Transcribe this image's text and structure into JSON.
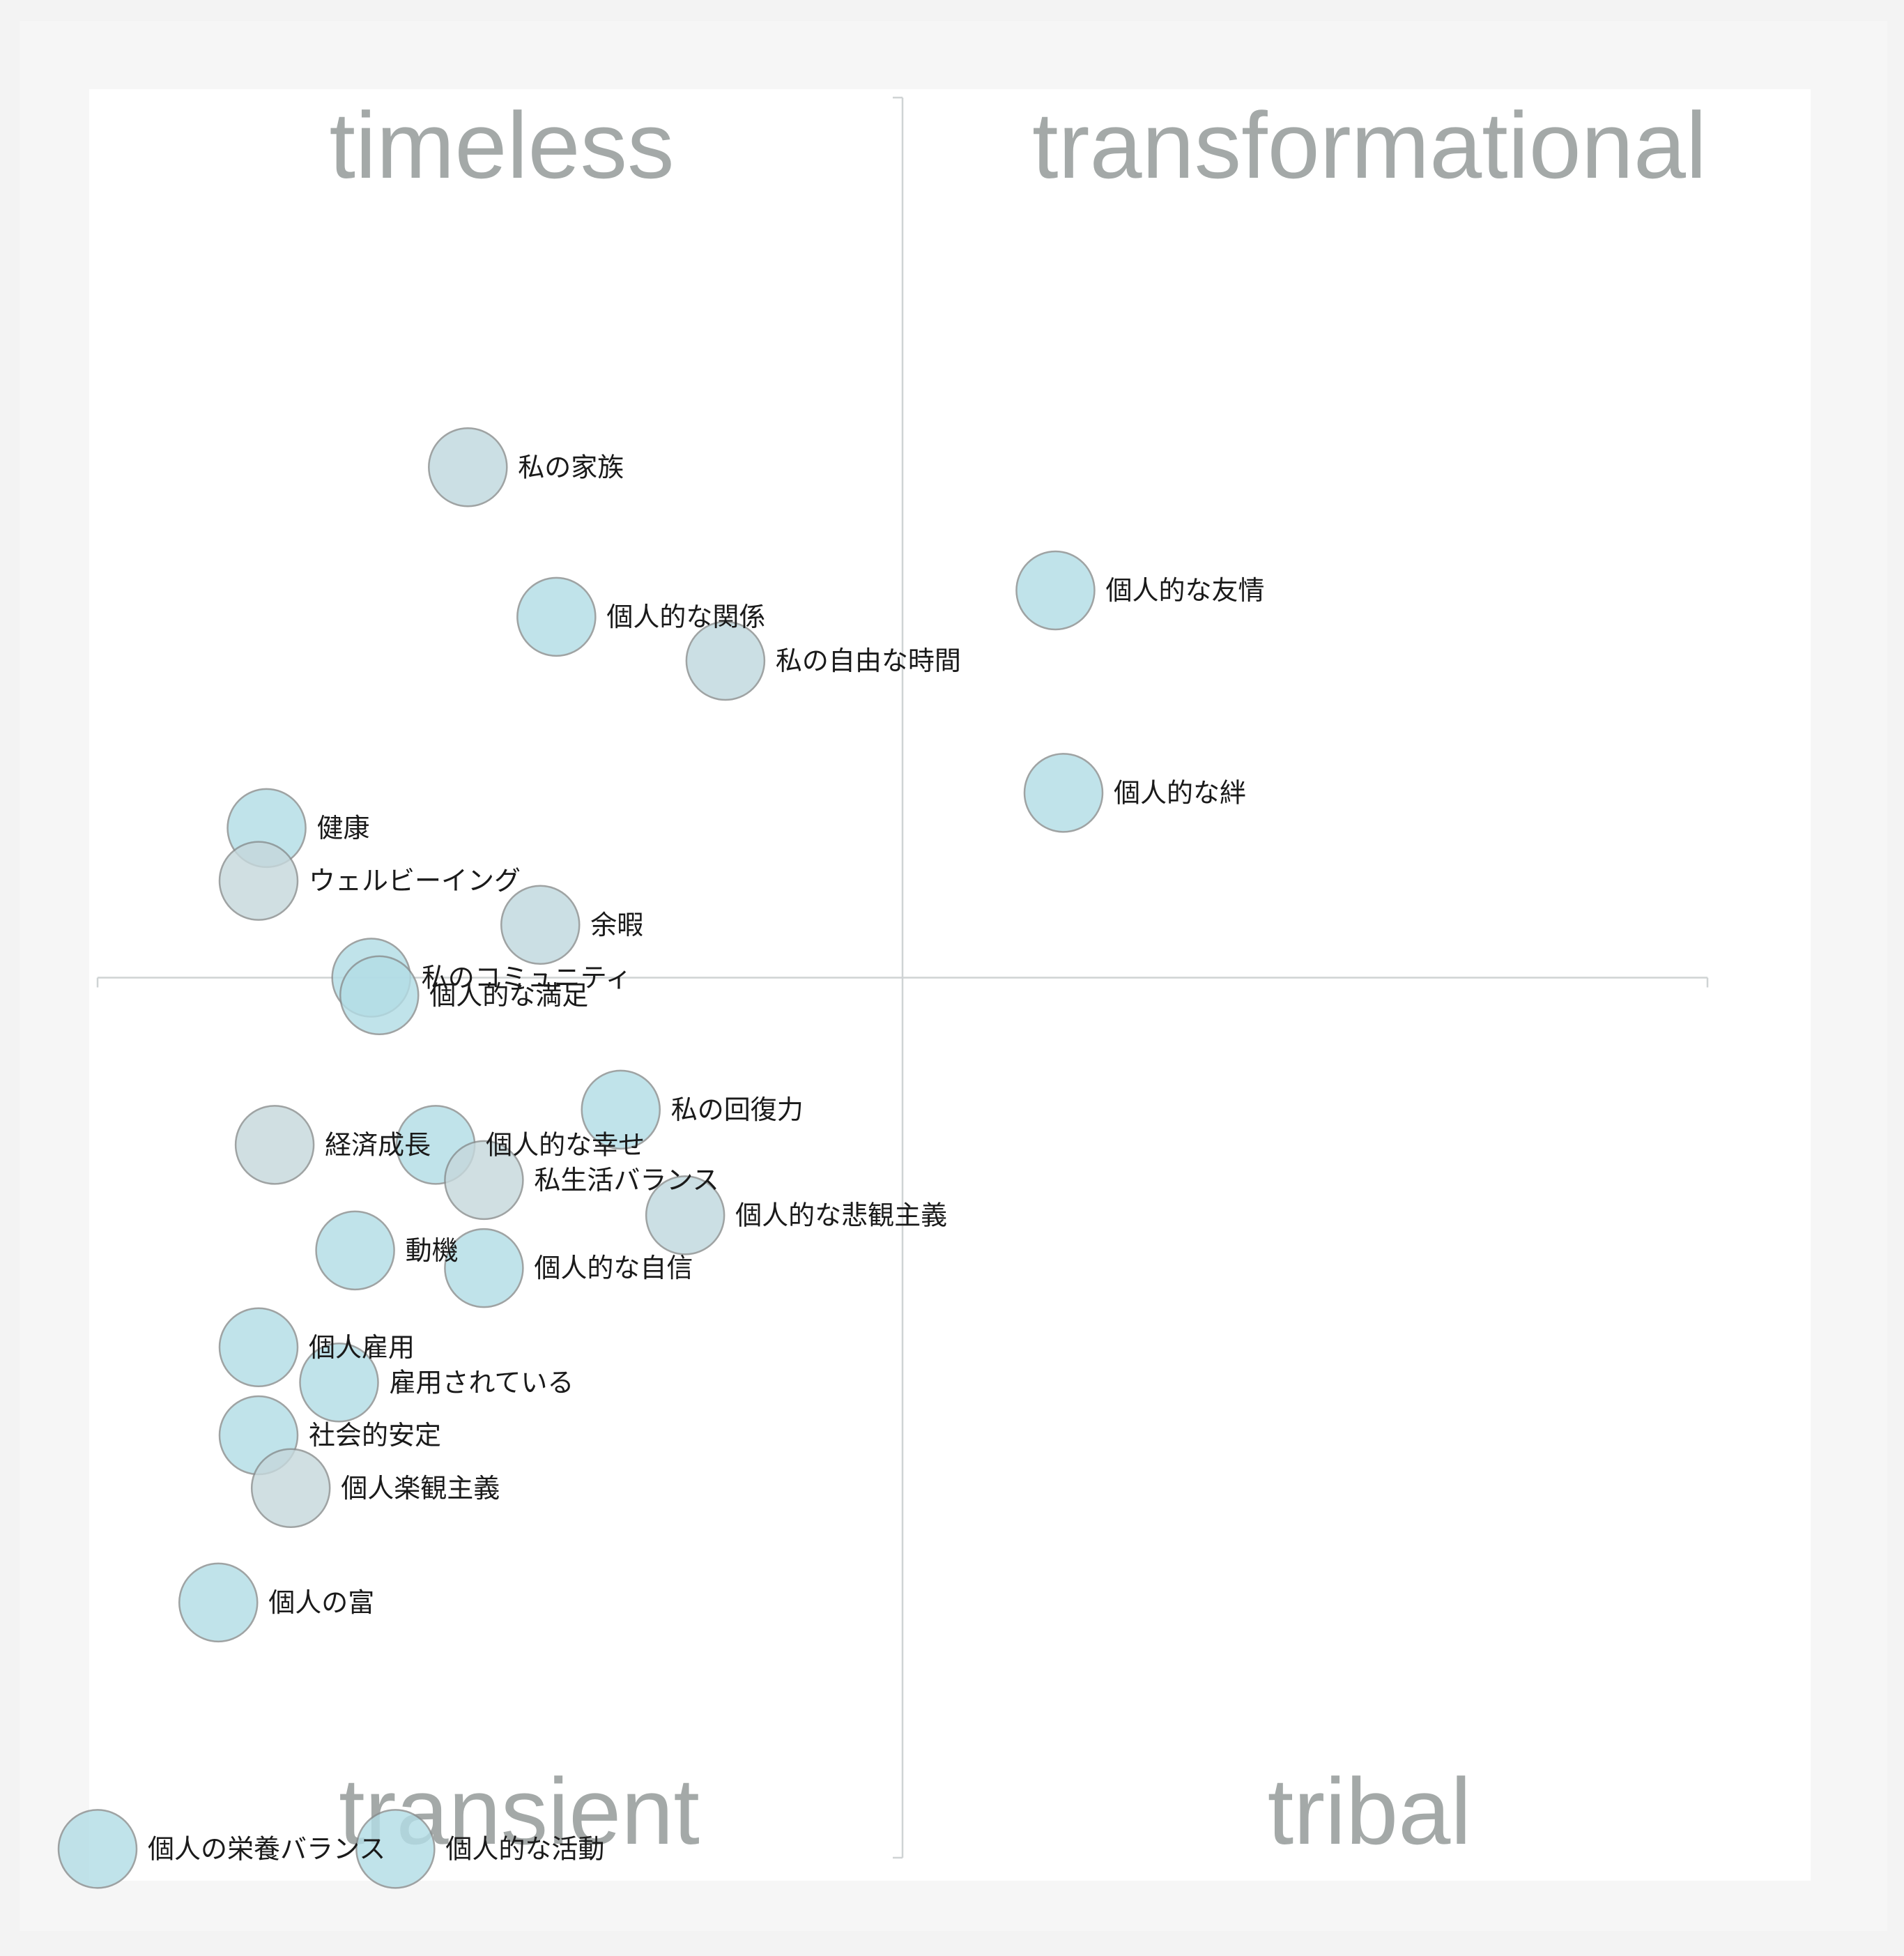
{
  "chart_data": {
    "type": "scatter",
    "title": "",
    "xlabel": "",
    "ylabel": "",
    "xlim": [
      -10,
      10
    ],
    "ylim": [
      -10,
      10
    ],
    "grid": false,
    "quadrant_labels": {
      "top_left": "timeless",
      "top_right": "transformational",
      "bottom_left": "transient",
      "bottom_right": "tribal"
    },
    "colors": {
      "bubble": "#b3dde6",
      "bubble_alt": "#c0d9df",
      "axis": "#cfd3d4",
      "quadrant_text": "#a4a9a8",
      "background": "#f3f3f3",
      "plot_background": "#ffffff"
    },
    "points": [
      {
        "label": "私の家族",
        "x": -5.4,
        "y": 5.8,
        "tone": "alt"
      },
      {
        "label": "個人的な関係",
        "x": -4.3,
        "y": 4.1,
        "tone": "main"
      },
      {
        "label": "私の自由な時間",
        "x": -2.2,
        "y": 3.6,
        "tone": "alt"
      },
      {
        "label": "個人的な友情",
        "x": 1.9,
        "y": 4.4,
        "tone": "main"
      },
      {
        "label": "個人的な絆",
        "x": 2.0,
        "y": 2.1,
        "tone": "main"
      },
      {
        "label": "健康",
        "x": -7.9,
        "y": 1.7,
        "tone": "main"
      },
      {
        "label": "ウェルビーイング",
        "x": -8.0,
        "y": 1.1,
        "tone": "gray"
      },
      {
        "label": "余暇",
        "x": -4.5,
        "y": 0.6,
        "tone": "alt"
      },
      {
        "label": "私のコミュニティ",
        "x": -6.6,
        "y": 0.0,
        "tone": "main"
      },
      {
        "label": "個人的な満足",
        "x": -6.5,
        "y": -0.2,
        "tone": "main"
      },
      {
        "label": "私の回復力",
        "x": -3.5,
        "y": -1.5,
        "tone": "main"
      },
      {
        "label": "経済成長",
        "x": -7.8,
        "y": -1.9,
        "tone": "gray"
      },
      {
        "label": "個人的な幸せ",
        "x": -5.8,
        "y": -1.9,
        "tone": "main"
      },
      {
        "label": "私生活バランス",
        "x": -5.2,
        "y": -2.3,
        "tone": "gray"
      },
      {
        "label": "個人的な悲観主義",
        "x": -2.7,
        "y": -2.7,
        "tone": "alt"
      },
      {
        "label": "動機",
        "x": -6.8,
        "y": -3.1,
        "tone": "main"
      },
      {
        "label": "個人的な自信",
        "x": -5.2,
        "y": -3.3,
        "tone": "main"
      },
      {
        "label": "個人雇用",
        "x": -8.0,
        "y": -4.2,
        "tone": "main"
      },
      {
        "label": "雇用されている",
        "x": -7.0,
        "y": -4.6,
        "tone": "main"
      },
      {
        "label": "社会的安定",
        "x": -8.0,
        "y": -5.2,
        "tone": "main"
      },
      {
        "label": "個人楽観主義",
        "x": -7.6,
        "y": -5.8,
        "tone": "gray"
      },
      {
        "label": "個人の富",
        "x": -8.5,
        "y": -7.1,
        "tone": "main"
      },
      {
        "label": "個人の栄養バランス",
        "x": -10.0,
        "y": -9.9,
        "tone": "main"
      },
      {
        "label": "個人的な活動",
        "x": -6.3,
        "y": -9.9,
        "tone": "main"
      }
    ]
  }
}
